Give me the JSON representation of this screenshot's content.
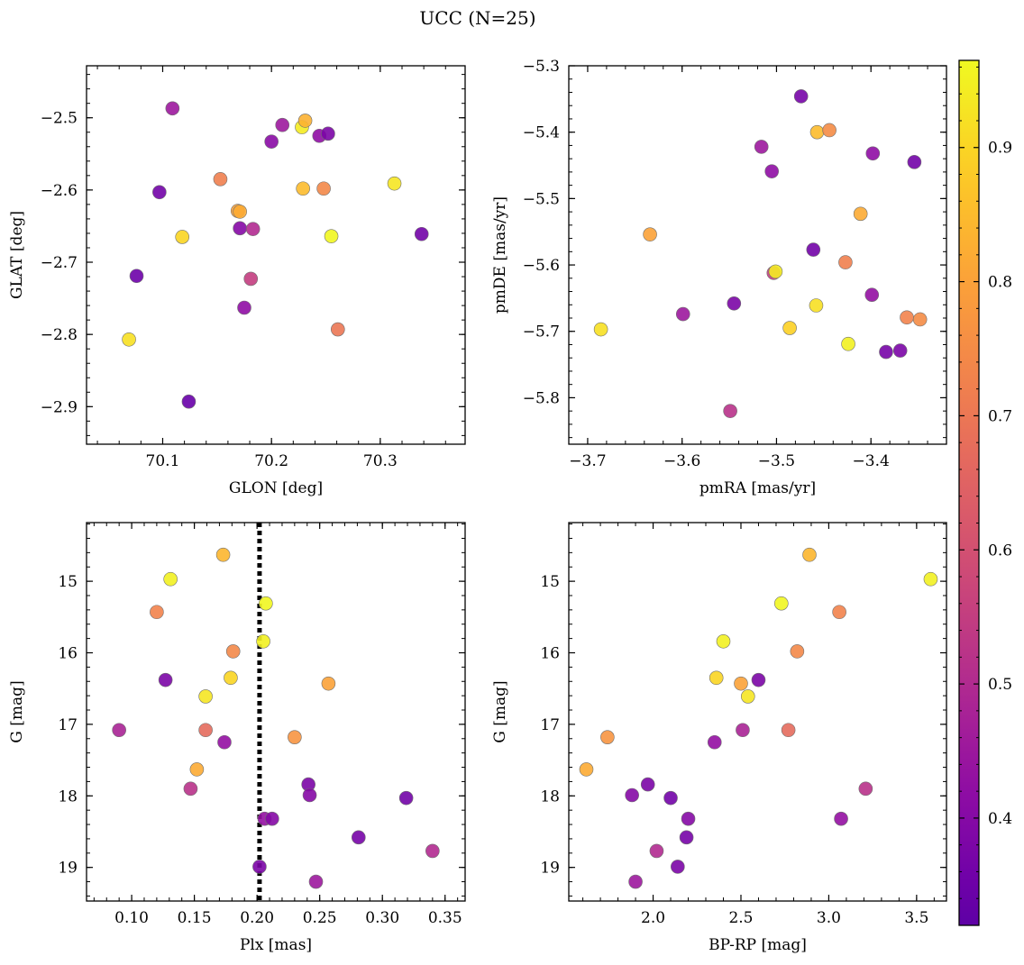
{
  "figure": {
    "title": "UCC (N=25)"
  },
  "colorbar": {
    "colormap": "plasma",
    "range": [
      0.32,
      0.965
    ],
    "ticks": [
      0.4,
      0.5,
      0.6,
      0.7,
      0.8,
      0.9
    ],
    "tick_labels": [
      "0.4",
      "0.5",
      "0.6",
      "0.7",
      "0.8",
      "0.9"
    ]
  },
  "point_style": {
    "edge_color": "#707070",
    "opacity": 0.9
  },
  "chart_data": [
    {
      "type": "scatter",
      "panel": "top-left",
      "xlabel": "GLON [deg]",
      "ylabel": "GLAT [deg]",
      "xlim": [
        70.03,
        70.378
      ],
      "ylim": [
        -2.952,
        -2.428
      ],
      "y_inverted": false,
      "xticks": [
        70.1,
        70.2,
        70.3
      ],
      "xtick_labels": [
        "70.1",
        "70.2",
        "70.3"
      ],
      "yticks": [
        -2.9,
        -2.8,
        -2.7,
        -2.6,
        -2.5
      ],
      "ytick_labels": [
        "−2.9",
        "−2.8",
        "−2.7",
        "−2.6",
        "−2.5"
      ],
      "grid": false,
      "points": [
        {
          "x": 70.109,
          "y": -2.487,
          "c": 0.45
        },
        {
          "x": 70.097,
          "y": -2.603,
          "c": 0.36
        },
        {
          "x": 70.076,
          "y": -2.719,
          "c": 0.35
        },
        {
          "x": 70.069,
          "y": -2.807,
          "c": 0.92
        },
        {
          "x": 70.118,
          "y": -2.665,
          "c": 0.9
        },
        {
          "x": 70.124,
          "y": -2.893,
          "c": 0.34
        },
        {
          "x": 70.153,
          "y": -2.585,
          "c": 0.72
        },
        {
          "x": 70.169,
          "y": -2.629,
          "c": 0.8
        },
        {
          "x": 70.171,
          "y": -2.63,
          "c": 0.82
        },
        {
          "x": 70.171,
          "y": -2.653,
          "c": 0.4
        },
        {
          "x": 70.175,
          "y": -2.763,
          "c": 0.42
        },
        {
          "x": 70.181,
          "y": -2.723,
          "c": 0.55
        },
        {
          "x": 70.183,
          "y": -2.654,
          "c": 0.5
        },
        {
          "x": 70.2,
          "y": -2.533,
          "c": 0.41
        },
        {
          "x": 70.21,
          "y": -2.51,
          "c": 0.45
        },
        {
          "x": 70.228,
          "y": -2.513,
          "c": 0.94
        },
        {
          "x": 70.231,
          "y": -2.504,
          "c": 0.83
        },
        {
          "x": 70.229,
          "y": -2.598,
          "c": 0.85
        },
        {
          "x": 70.244,
          "y": -2.525,
          "c": 0.42
        },
        {
          "x": 70.252,
          "y": -2.522,
          "c": 0.38
        },
        {
          "x": 70.248,
          "y": -2.598,
          "c": 0.74
        },
        {
          "x": 70.255,
          "y": -2.664,
          "c": 0.96
        },
        {
          "x": 70.261,
          "y": -2.793,
          "c": 0.7
        },
        {
          "x": 70.313,
          "y": -2.591,
          "c": 0.93
        },
        {
          "x": 70.338,
          "y": -2.661,
          "c": 0.36
        }
      ]
    },
    {
      "type": "scatter",
      "panel": "top-right",
      "xlabel": "pmRA [mas/yr]",
      "ylabel": "pmDE [mas/yr]",
      "xlim": [
        -3.72,
        -3.32
      ],
      "ylim": [
        -5.87,
        -5.3
      ],
      "y_inverted": false,
      "xticks": [
        -3.7,
        -3.6,
        -3.5,
        -3.4
      ],
      "xtick_labels": [
        "−3.7",
        "−3.6",
        "−3.5",
        "−3.4"
      ],
      "yticks": [
        -5.8,
        -5.7,
        -5.6,
        -5.5,
        -5.4,
        -5.3
      ],
      "ytick_labels": [
        "−5.8",
        "−5.7",
        "−5.6",
        "−5.5",
        "−5.4",
        "−5.3"
      ],
      "grid": false,
      "points": [
        {
          "x": -3.474,
          "y": -5.346,
          "c": 0.37
        },
        {
          "x": -3.457,
          "y": -5.4,
          "c": 0.85
        },
        {
          "x": -3.444,
          "y": -5.397,
          "c": 0.75
        },
        {
          "x": -3.516,
          "y": -5.422,
          "c": 0.45
        },
        {
          "x": -3.398,
          "y": -5.432,
          "c": 0.42
        },
        {
          "x": -3.354,
          "y": -5.445,
          "c": 0.36
        },
        {
          "x": -3.505,
          "y": -5.459,
          "c": 0.42
        },
        {
          "x": -3.411,
          "y": -5.523,
          "c": 0.82
        },
        {
          "x": -3.634,
          "y": -5.554,
          "c": 0.8
        },
        {
          "x": -3.461,
          "y": -5.577,
          "c": 0.36
        },
        {
          "x": -3.427,
          "y": -5.596,
          "c": 0.72
        },
        {
          "x": -3.503,
          "y": -5.612,
          "c": 0.55
        },
        {
          "x": -3.501,
          "y": -5.61,
          "c": 0.94
        },
        {
          "x": -3.399,
          "y": -5.645,
          "c": 0.43
        },
        {
          "x": -3.545,
          "y": -5.658,
          "c": 0.38
        },
        {
          "x": -3.458,
          "y": -5.661,
          "c": 0.92
        },
        {
          "x": -3.599,
          "y": -5.674,
          "c": 0.45
        },
        {
          "x": -3.362,
          "y": -5.679,
          "c": 0.73
        },
        {
          "x": -3.348,
          "y": -5.682,
          "c": 0.75
        },
        {
          "x": -3.686,
          "y": -5.697,
          "c": 0.92
        },
        {
          "x": -3.486,
          "y": -5.695,
          "c": 0.89
        },
        {
          "x": -3.424,
          "y": -5.719,
          "c": 0.95
        },
        {
          "x": -3.384,
          "y": -5.731,
          "c": 0.37
        },
        {
          "x": -3.369,
          "y": -5.729,
          "c": 0.38
        },
        {
          "x": -3.549,
          "y": -5.82,
          "c": 0.52
        }
      ]
    },
    {
      "type": "scatter",
      "panel": "bottom-left",
      "xlabel": "Plx [mas]",
      "ylabel": "G [mag]",
      "xlim": [
        0.064,
        0.366
      ],
      "ylim": [
        19.47,
        14.18
      ],
      "y_inverted": true,
      "xticks": [
        0.1,
        0.15,
        0.2,
        0.25,
        0.3,
        0.35
      ],
      "xtick_labels": [
        "0.10",
        "0.15",
        "0.20",
        "0.25",
        "0.30",
        "0.35"
      ],
      "yticks": [
        15,
        16,
        17,
        18,
        19
      ],
      "ytick_labels": [
        "15",
        "16",
        "17",
        "18",
        "19"
      ],
      "grid": false,
      "vline": {
        "x": 0.202,
        "style": "dotted",
        "color": "#000000"
      },
      "points": [
        {
          "x": 0.173,
          "y": 14.63,
          "c": 0.84
        },
        {
          "x": 0.131,
          "y": 14.97,
          "c": 0.95
        },
        {
          "x": 0.207,
          "y": 15.31,
          "c": 0.96
        },
        {
          "x": 0.12,
          "y": 15.43,
          "c": 0.73
        },
        {
          "x": 0.205,
          "y": 15.84,
          "c": 0.95
        },
        {
          "x": 0.181,
          "y": 15.98,
          "c": 0.74
        },
        {
          "x": 0.127,
          "y": 16.38,
          "c": 0.38
        },
        {
          "x": 0.179,
          "y": 16.35,
          "c": 0.9
        },
        {
          "x": 0.257,
          "y": 16.43,
          "c": 0.8
        },
        {
          "x": 0.159,
          "y": 16.61,
          "c": 0.93
        },
        {
          "x": 0.09,
          "y": 17.08,
          "c": 0.48
        },
        {
          "x": 0.159,
          "y": 17.08,
          "c": 0.67
        },
        {
          "x": 0.23,
          "y": 17.18,
          "c": 0.77
        },
        {
          "x": 0.174,
          "y": 17.25,
          "c": 0.43
        },
        {
          "x": 0.152,
          "y": 17.63,
          "c": 0.82
        },
        {
          "x": 0.241,
          "y": 17.84,
          "c": 0.38
        },
        {
          "x": 0.147,
          "y": 17.9,
          "c": 0.52
        },
        {
          "x": 0.242,
          "y": 17.99,
          "c": 0.4
        },
        {
          "x": 0.319,
          "y": 18.03,
          "c": 0.36
        },
        {
          "x": 0.206,
          "y": 18.32,
          "c": 0.43
        },
        {
          "x": 0.212,
          "y": 18.32,
          "c": 0.4
        },
        {
          "x": 0.281,
          "y": 18.58,
          "c": 0.37
        },
        {
          "x": 0.34,
          "y": 18.77,
          "c": 0.5
        },
        {
          "x": 0.202,
          "y": 18.99,
          "c": 0.38
        },
        {
          "x": 0.247,
          "y": 19.2,
          "c": 0.45
        }
      ]
    },
    {
      "type": "scatter",
      "panel": "bottom-right",
      "xlabel": "BP-RP [mag]",
      "ylabel": "G [mag]",
      "xlim": [
        1.52,
        3.67
      ],
      "ylim": [
        19.47,
        14.18
      ],
      "y_inverted": true,
      "xticks": [
        2.0,
        2.5,
        3.0,
        3.5
      ],
      "xtick_labels": [
        "2.0",
        "2.5",
        "3.0",
        "3.5"
      ],
      "yticks": [
        15,
        16,
        17,
        18,
        19
      ],
      "ytick_labels": [
        "15",
        "16",
        "17",
        "18",
        "19"
      ],
      "grid": false,
      "points": [
        {
          "x": 2.89,
          "y": 14.63,
          "c": 0.84
        },
        {
          "x": 3.58,
          "y": 14.97,
          "c": 0.95
        },
        {
          "x": 2.73,
          "y": 15.31,
          "c": 0.96
        },
        {
          "x": 3.06,
          "y": 15.43,
          "c": 0.73
        },
        {
          "x": 2.4,
          "y": 15.84,
          "c": 0.95
        },
        {
          "x": 2.82,
          "y": 15.98,
          "c": 0.74
        },
        {
          "x": 2.6,
          "y": 16.38,
          "c": 0.38
        },
        {
          "x": 2.36,
          "y": 16.35,
          "c": 0.9
        },
        {
          "x": 2.5,
          "y": 16.43,
          "c": 0.8
        },
        {
          "x": 2.54,
          "y": 16.61,
          "c": 0.93
        },
        {
          "x": 2.51,
          "y": 17.08,
          "c": 0.48
        },
        {
          "x": 2.77,
          "y": 17.08,
          "c": 0.67
        },
        {
          "x": 1.74,
          "y": 17.18,
          "c": 0.77
        },
        {
          "x": 2.35,
          "y": 17.25,
          "c": 0.43
        },
        {
          "x": 1.62,
          "y": 17.63,
          "c": 0.82
        },
        {
          "x": 1.97,
          "y": 17.84,
          "c": 0.38
        },
        {
          "x": 3.21,
          "y": 17.9,
          "c": 0.52
        },
        {
          "x": 1.88,
          "y": 17.99,
          "c": 0.4
        },
        {
          "x": 2.1,
          "y": 18.03,
          "c": 0.36
        },
        {
          "x": 3.07,
          "y": 18.32,
          "c": 0.43
        },
        {
          "x": 2.2,
          "y": 18.32,
          "c": 0.4
        },
        {
          "x": 2.19,
          "y": 18.58,
          "c": 0.37
        },
        {
          "x": 2.02,
          "y": 18.77,
          "c": 0.5
        },
        {
          "x": 2.14,
          "y": 18.99,
          "c": 0.38
        },
        {
          "x": 1.9,
          "y": 19.2,
          "c": 0.45
        }
      ]
    }
  ]
}
